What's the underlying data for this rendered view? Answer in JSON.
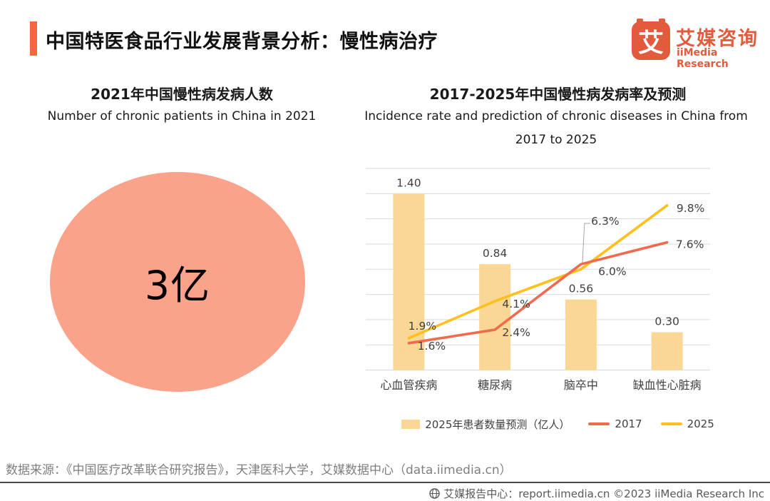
{
  "header": {
    "title": "中国特医食品行业发展背景分析：慢性病治疗",
    "logo": {
      "glyph": "艾",
      "name_zh": "艾媒咨询",
      "name_en": "iiMedia Research"
    }
  },
  "left_chart": {
    "title_zh": "2021年中国慢性病发病人数",
    "title_en": "Number of chronic patients in China in 2021",
    "value": "3亿"
  },
  "right_chart": {
    "title_zh": "2017-2025年中国慢性病发病率及预测",
    "title_en_line1": "Incidence rate and prediction of chronic diseases in China from",
    "title_en_line2": "2017 to 2025"
  },
  "chart_data": {
    "type": "combo-bar-line",
    "categories": [
      "心血管疾病",
      "糖尿病",
      "脑卒中",
      "缺血性心脏病"
    ],
    "bar_series": {
      "name": "2025年患者数量预测（亿人）",
      "values": [
        1.4,
        0.84,
        0.56,
        0.3
      ],
      "labels": [
        "1.40",
        "0.84",
        "0.56",
        "0.30"
      ],
      "color": "#FAD794"
    },
    "line_series": [
      {
        "name": "2017",
        "values": [
          1.6,
          2.4,
          6.3,
          7.6
        ],
        "labels": [
          "1.6%",
          "2.4%",
          "6.3%",
          "7.6%"
        ],
        "color": "#EF6A4E"
      },
      {
        "name": "2025",
        "values": [
          1.9,
          4.1,
          6.0,
          9.8
        ],
        "labels": [
          "1.9%",
          "4.1%",
          "6.0%",
          "9.8%"
        ],
        "color": "#FFC01E"
      }
    ],
    "primary_axis": {
      "min": 0,
      "max": 1.6,
      "grid_step": 0.2,
      "unit": "亿人"
    },
    "secondary_axis": {
      "min": 0,
      "max": 12,
      "unit": "%"
    },
    "grid": true,
    "legend_position": "bottom"
  },
  "colors": {
    "accent": "#F4683C",
    "logo": "#E25B3C",
    "circle": "#FBA28B",
    "grid": "#D9D9D9",
    "label": "#404040",
    "callout": "#A6A6A6"
  },
  "footer": {
    "source": "数据来源：《中国医疗改革联合研究报告》，天津医科大学，艾媒数据中心（data.iimedia.cn）",
    "credit": "艾媒报告中心：report.iimedia.cn  ©2023  iiMedia Research Inc"
  }
}
